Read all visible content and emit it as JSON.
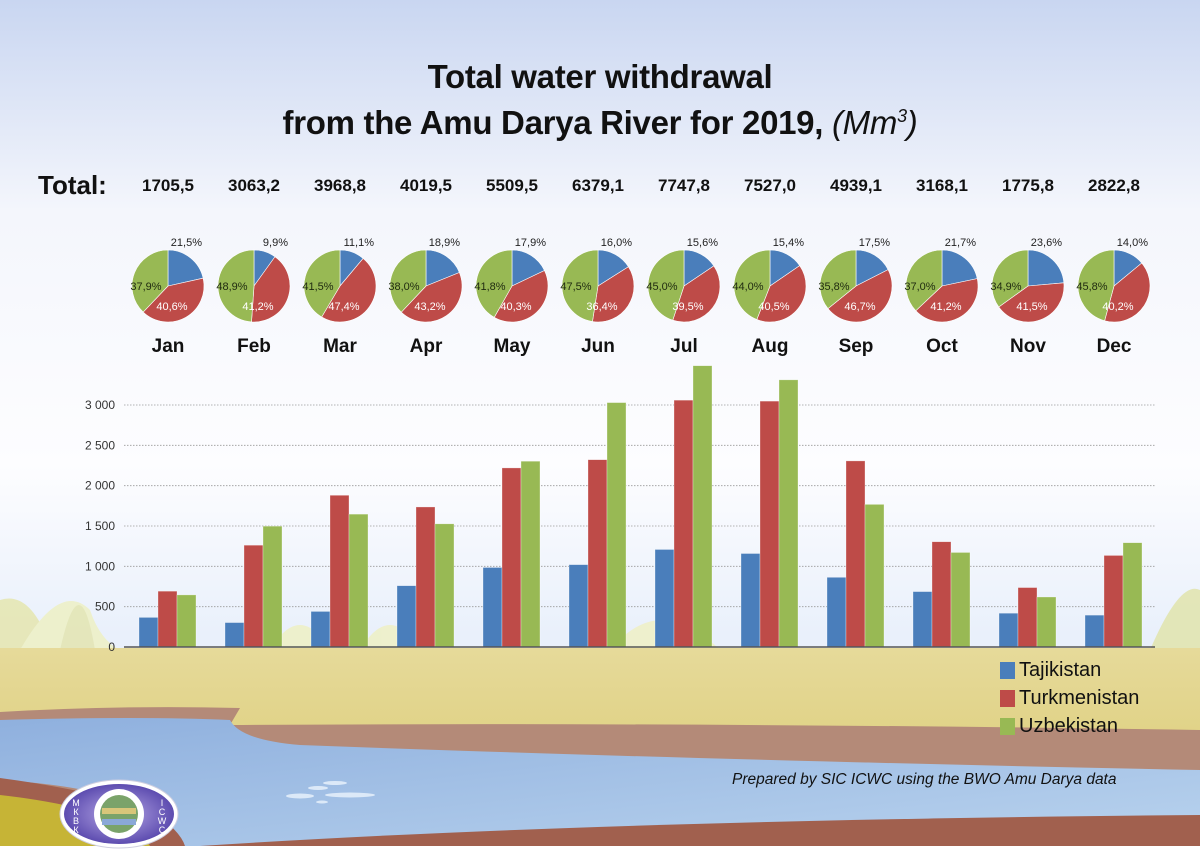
{
  "title": {
    "line1": "Total water withdrawal",
    "line2": "from the Amu Darya River for 2019,",
    "unit_open": "(Mm",
    "unit_sup": "3",
    "unit_close": ")"
  },
  "totals_label": "Total:",
  "credit": "Prepared by SIC ICWC using the BWO Amu Darya data",
  "logo": {
    "left_text": "МКВК",
    "right_text": "ICWC"
  },
  "colors": {
    "Tajikistan": "#4a7ebb",
    "Turkmenistan": "#be4b48",
    "Uzbekistan": "#98b954"
  },
  "chart_data": [
    {
      "type": "pie",
      "title": "Monthly share of withdrawal by country",
      "categories": [
        "Jan",
        "Feb",
        "Mar",
        "Apr",
        "May",
        "Jun",
        "Jul",
        "Aug",
        "Sep",
        "Oct",
        "Nov",
        "Dec"
      ],
      "totals": [
        "1705,5",
        "3063,2",
        "3968,8",
        "4019,5",
        "5509,5",
        "6379,1",
        "7747,8",
        "7527,0",
        "4939,1",
        "3168,1",
        "1775,8",
        "2822,8"
      ],
      "series": [
        {
          "name": "Tajikistan",
          "values": [
            21.5,
            9.9,
            11.1,
            18.9,
            17.9,
            16.0,
            15.6,
            15.4,
            17.5,
            21.7,
            23.6,
            14.0
          ],
          "labels": [
            "21,5%",
            "9,9%",
            "11,1%",
            "18,9%",
            "17,9%",
            "16,0%",
            "15,6%",
            "15,4%",
            "17,5%",
            "21,7%",
            "23,6%",
            "14,0%"
          ]
        },
        {
          "name": "Turkmenistan",
          "values": [
            40.6,
            41.2,
            47.4,
            43.2,
            40.3,
            36.4,
            39.5,
            40.5,
            46.7,
            41.2,
            41.5,
            40.2
          ],
          "labels": [
            "40,6%",
            "41,2%",
            "47,4%",
            "43,2%",
            "40,3%",
            "36,4%",
            "39,5%",
            "40,5%",
            "46,7%",
            "41,2%",
            "41,5%",
            "40,2%"
          ]
        },
        {
          "name": "Uzbekistan",
          "values": [
            37.9,
            48.9,
            41.5,
            38.0,
            41.8,
            47.5,
            45.0,
            44.0,
            35.8,
            37.0,
            34.9,
            45.8
          ],
          "labels": [
            "37,9%",
            "48,9%",
            "41,5%",
            "38,0%",
            "41,8%",
            "47,5%",
            "45,0%",
            "44,0%",
            "35,8%",
            "37,0%",
            "34,9%",
            "45,8%"
          ]
        }
      ]
    },
    {
      "type": "bar",
      "title": "",
      "xlabel": "",
      "ylabel": "",
      "categories": [
        "Jan",
        "Feb",
        "Mar",
        "Apr",
        "May",
        "Jun",
        "Jul",
        "Aug",
        "Sep",
        "Oct",
        "Nov",
        "Dec"
      ],
      "series": [
        {
          "name": "Tajikistan",
          "values": [
            367,
            303,
            441,
            760,
            986,
            1021,
            1209,
            1159,
            864,
            687,
            419,
            395
          ]
        },
        {
          "name": "Turkmenistan",
          "values": [
            692,
            1262,
            1881,
            1736,
            2220,
            2322,
            3060,
            3048,
            2307,
            1305,
            737,
            1135
          ]
        },
        {
          "name": "Uzbekistan",
          "values": [
            646,
            1498,
            1647,
            1527,
            2303,
            3030,
            3487,
            3312,
            1768,
            1172,
            620,
            1293
          ]
        }
      ],
      "ylim": [
        0,
        3500
      ],
      "yticks": [
        0,
        500,
        1000,
        1500,
        2000,
        2500,
        3000
      ],
      "ytick_labels": [
        "0",
        "500",
        "1 000",
        "1 500",
        "2 000",
        "2 500",
        "3 000"
      ],
      "grid": true,
      "legend": {
        "position": "bottom-right",
        "entries": [
          "Tajikistan",
          "Turkmenistan",
          "Uzbekistan"
        ]
      }
    }
  ]
}
